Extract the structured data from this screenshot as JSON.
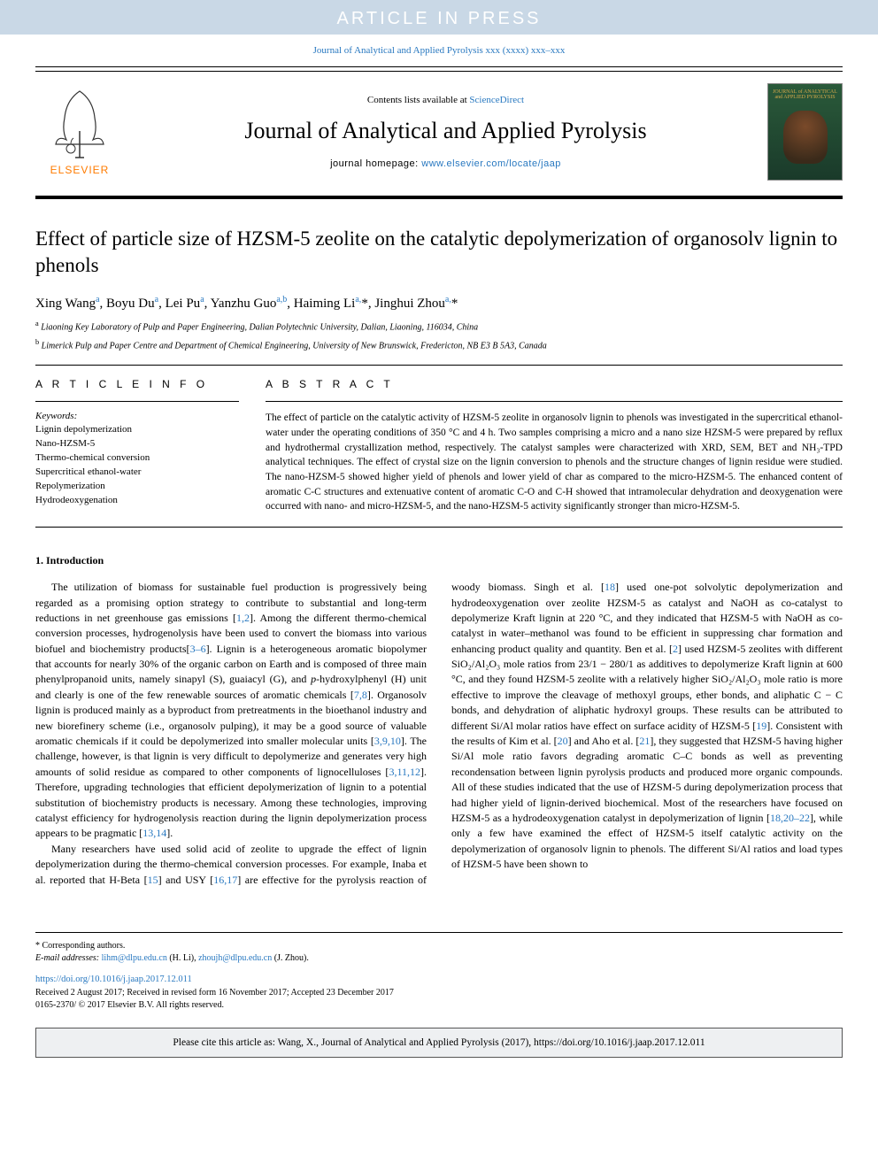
{
  "banner": {
    "text": "ARTICLE IN PRESS"
  },
  "journalRef": "Journal of Analytical and Applied Pyrolysis xxx (xxxx) xxx–xxx",
  "header": {
    "contentsPrefix": "Contents lists available at ",
    "contentsLink": "ScienceDirect",
    "journalName": "Journal of Analytical and Applied Pyrolysis",
    "homepagePrefix": "journal homepage: ",
    "homepageLink": "www.elsevier.com/locate/jaap",
    "elsevierLabel": "ELSEVIER",
    "coverTitle": "JOURNAL of ANALYTICAL and APPLIED PYROLYSIS"
  },
  "article": {
    "title": "Effect of particle size of HZSM-5 zeolite on the catalytic depolymerization of organosolv lignin to phenols",
    "authorsHtml": "Xing Wang<sup>a</sup>, Boyu Du<sup>a</sup>, Lei Pu<sup>a</sup>, Yanzhu Guo<sup>a,b</sup>, Haiming Li<sup>a,</sup>*, Jinghui Zhou<sup>a,</sup>*",
    "affA": "Liaoning Key Laboratory of Pulp and Paper Engineering, Dalian Polytechnic University, Dalian, Liaoning, 116034, China",
    "affB": "Limerick Pulp and Paper Centre and Department of Chemical Engineering, University of New Brunswick, Fredericton, NB E3 B 5A3, Canada"
  },
  "info": {
    "sectionLabel": "A R T I C L E  I N F O",
    "keywordsLabel": "Keywords:",
    "keywords": "Lignin depolymerization\nNano-HZSM-5\nThermo-chemical conversion\nSupercritical ethanol-water\nRepolymerization\nHydrodeoxygenation"
  },
  "abstract": {
    "sectionLabel": "A B S T R A C T",
    "text": "The effect of particle on the catalytic activity of HZSM-5 zeolite in organosolv lignin to phenols was investigated in the supercritical ethanol-water under the operating conditions of 350 °C and 4 h. Two samples comprising a micro and a nano size HZSM-5 were prepared by reflux and hydrothermal crystallization method, respectively. The catalyst samples were characterized with XRD, SEM, BET and NH₃-TPD analytical techniques. The effect of crystal size on the lignin conversion to phenols and the structure changes of lignin residue were studied. The nano-HZSM-5 showed higher yield of phenols and lower yield of char as compared to the micro-HZSM-5. The enhanced content of aromatic C-C structures and extenuative content of aromatic C-O and C-H showed that intramolecular dehydration and deoxygenation were occurred with nano- and micro-HZSM-5, and the nano-HZSM-5 activity significantly stronger than micro-HZSM-5."
  },
  "introduction": {
    "heading": "1. Introduction",
    "p1": "The utilization of biomass for sustainable fuel production is progressively being regarded as a promising option strategy to contribute to substantial and long-term reductions in net greenhouse gas emissions [1,2]. Among the different thermo-chemical conversion processes, hydrogenolysis have been used to convert the biomass into various biofuel and biochemistry products[3–6]. Lignin is a heterogeneous aromatic biopolymer that accounts for nearly 30% of the organic carbon on Earth and is composed of three main phenylpropanoid units, namely sinapyl (S), guaiacyl (G), and p-hydroxylphenyl (H) unit and clearly is one of the few renewable sources of aromatic chemicals [7,8]. Organosolv lignin is produced mainly as a byproduct from pretreatments in the bioethanol industry and new biorefinery scheme (i.e., organosolv pulping), it may be a good source of valuable aromatic chemicals if it could be depolymerized into smaller molecular units [3,9,10]. The challenge, however, is that lignin is very difficult to depolymerize and generates very high amounts of solid residue as compared to other components of lignocelluloses [3,11,12]. Therefore, upgrading technologies that efficient depolymerization of lignin to a potential substitution of biochemistry products is necessary. Among these technologies, improving catalyst efficiency for hydrogenolysis reaction during the lignin depolymerization process appears to be pragmatic [13,14].",
    "p2": "Many researchers have used solid acid of zeolite to upgrade the effect of lignin depolymerization during the thermo-chemical conversion processes. For example, Inaba et al. reported that H-Beta [15] and USY [16,17] are effective for the pyrolysis reaction of woody biomass. Singh et al. [18] used one-pot solvolytic depolymerization and hydrodeoxygenation over zeolite HZSM-5 as catalyst and NaOH as co-catalyst to depolymerize Kraft lignin at 220 °C, and they indicated that HZSM-5 with NaOH as co-catalyst in water–methanol was found to be efficient in suppressing char formation and enhancing product quality and quantity. Ben et al. [2] used HZSM-5 zeolites with different SiO₂/Al₂O₃ mole ratios from 23/1 − 280/1 as additives to depolymerize Kraft lignin at 600 °C, and they found HZSM-5 zeolite with a relatively higher SiO₂/Al₂O₃ mole ratio is more effective to improve the cleavage of methoxyl groups, ether bonds, and aliphatic C − C bonds, and dehydration of aliphatic hydroxyl groups. These results can be attributed to different Si/Al molar ratios have effect on surface acidity of HZSM-5 [19]. Consistent with the results of Kim et al. [20] and Aho et al. [21], they suggested that HZSM-5 having higher Si/Al mole ratio favors degrading aromatic C–C bonds as well as preventing recondensation between lignin pyrolysis products and produced more organic compounds. All of these studies indicated that the use of HZSM-5 during depolymerization process that had higher yield of lignin-derived biochemical. Most of the researchers have focused on HZSM-5 as a hydrodeoxygenation catalyst in depolymerization of lignin [18,20–22], while only a few have examined the effect of HZSM-5 itself catalytic activity on the depolymerization of organosolv lignin to phenols. The different Si/Al ratios and load types of HZSM-5 have been shown to"
  },
  "footer": {
    "corresponding": "* Corresponding authors.",
    "emailLabel": "E-mail addresses:",
    "email1": "lihm@dlpu.edu.cn",
    "email1Name": "(H. Li),",
    "email2": "zhoujh@dlpu.edu.cn",
    "email2Name": "(J. Zhou).",
    "doi": "https://doi.org/10.1016/j.jaap.2017.12.011",
    "received": "Received 2 August 2017; Received in revised form 16 November 2017; Accepted 23 December 2017",
    "copyright": "0165-2370/ © 2017 Elsevier B.V. All rights reserved."
  },
  "citeBox": "Please cite this article as: Wang, X., Journal of Analytical and Applied Pyrolysis (2017), https://doi.org/10.1016/j.jaap.2017.12.011",
  "colors": {
    "bannerBg": "#c9d8e6",
    "bannerText": "#ffffff",
    "linkColor": "#2878c0",
    "elsevierOrange": "#ff7b00",
    "coverBgTop": "#2a5a3a",
    "coverBgBottom": "#1a3a2a",
    "coverTitleColor": "#d4a84a",
    "citeBoxBg": "#eef0f2",
    "textColor": "#000000"
  },
  "typography": {
    "bannerFontSize": 20,
    "journalNameFontSize": 26,
    "titleFontSize": 23,
    "bodyFontSize": 12,
    "abstractFontSize": 11.5,
    "footerFontSize": 10
  },
  "layout": {
    "pageWidth": 992,
    "pageHeight": 1323,
    "sideMargin": 40,
    "columnGap": 28
  }
}
